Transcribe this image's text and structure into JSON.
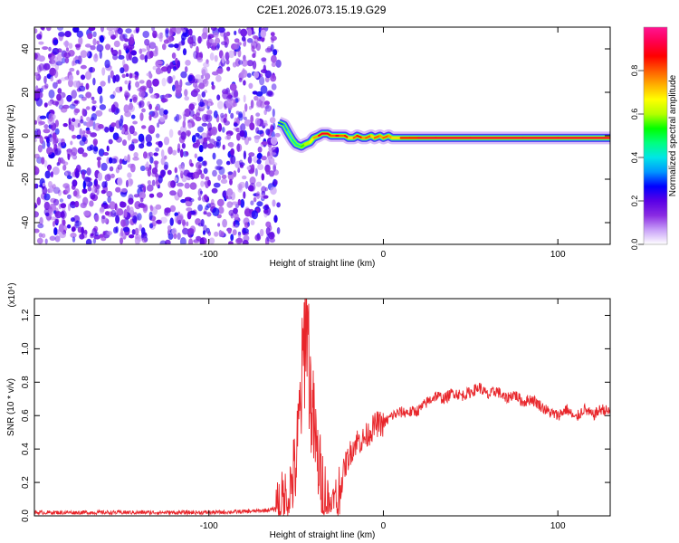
{
  "page_title": "C2E1.2026.073.15.19.G29",
  "chart_data": [
    {
      "type": "heatmap",
      "title": "C2E1.2026.073.15.19.G29",
      "xlabel": "Height of straight line (km)",
      "ylabel": "Frequency (Hz)",
      "xlim": [
        -200,
        130
      ],
      "ylim": [
        -50,
        50
      ],
      "x_ticks": [
        -100,
        0,
        100
      ],
      "y_ticks": [
        -40,
        -20,
        0,
        20,
        40
      ],
      "noise_region": {
        "x_start": -200,
        "x_end": -60
      },
      "signal_track": {
        "x": [
          -60,
          -57,
          -55,
          -52,
          -50,
          -47,
          -45,
          -42,
          -40,
          -37,
          -35,
          -32,
          -30,
          -27,
          -25,
          -22,
          -20,
          -17,
          -15,
          -12,
          -10,
          -7,
          -5,
          -2,
          0,
          3,
          5,
          10,
          15,
          20,
          30,
          50,
          80,
          100,
          130
        ],
        "y": [
          6,
          5,
          2,
          -2,
          -4,
          -5,
          -4,
          -3,
          -1,
          0,
          1,
          1,
          0,
          0,
          0,
          0,
          -1,
          -1,
          0,
          -1,
          -1,
          0,
          -1,
          0,
          -1,
          0,
          -1,
          -1,
          -1,
          -1,
          -1,
          -1,
          -1,
          -1,
          -1
        ],
        "peak_amplitude": [
          0.3,
          0.35,
          0.4,
          0.45,
          0.45,
          0.55,
          0.6,
          0.65,
          0.75,
          0.9,
          0.9,
          0.85,
          0.8,
          0.9,
          0.8,
          0.85,
          0.7,
          0.8,
          0.85,
          0.75,
          0.8,
          0.7,
          0.8,
          0.75,
          0.8,
          0.75,
          0.7,
          0.85,
          0.85,
          0.9,
          0.9,
          0.9,
          0.9,
          0.9,
          0.9
        ]
      },
      "colorbar": {
        "label": "Normalized spectral amplitude",
        "range": [
          0,
          1
        ],
        "ticks": [
          0.0,
          0.2,
          0.4,
          0.6,
          0.8
        ],
        "tick_labels": [
          "0.0",
          "0.2",
          "0.4",
          "0.6",
          "0.8"
        ],
        "colors": [
          "#ffffff",
          "#c8a0f8",
          "#8a2be2",
          "#5a00e6",
          "#0000ff",
          "#0096ff",
          "#00e6e6",
          "#00ff80",
          "#00ff00",
          "#b4ff00",
          "#ffff00",
          "#ffb000",
          "#ff5a00",
          "#ff0000",
          "#ff0050",
          "#ff1493"
        ]
      }
    },
    {
      "type": "line",
      "xlabel": "Height of straight line (km)",
      "ylabel": "SNR (10 * v/v)",
      "y_scale_label": "(x10⁴)",
      "xlim": [
        -200,
        130
      ],
      "ylim": [
        0,
        1.3
      ],
      "x_ticks": [
        -100,
        0,
        100
      ],
      "y_ticks": [
        0.0,
        0.2,
        0.4,
        0.6,
        0.8,
        1.0,
        1.2
      ],
      "y_tick_labels": [
        "0.0",
        "0.2",
        "0.4",
        "0.6",
        "0.8",
        "1.0",
        "1.2"
      ],
      "color": "#e8252a",
      "series": [
        {
          "x": [
            -200,
            -180,
            -160,
            -140,
            -120,
            -100,
            -80,
            -70,
            -62,
            -55,
            -50,
            -48,
            -46,
            -44,
            -42,
            -40,
            -38,
            -35,
            -32,
            -29,
            -26,
            -24,
            -22,
            -20,
            -18,
            -15,
            -12,
            -8,
            -4,
            0,
            5,
            10,
            15,
            20,
            25,
            30,
            35,
            40,
            45,
            50,
            55,
            60,
            65,
            70,
            75,
            80,
            85,
            90,
            95,
            100,
            105,
            110,
            115,
            120,
            125,
            130
          ],
          "y": [
            0.02,
            0.02,
            0.02,
            0.02,
            0.02,
            0.02,
            0.025,
            0.03,
            0.04,
            0.1,
            0.3,
            0.6,
            0.9,
            1.3,
            0.75,
            0.55,
            0.35,
            0.2,
            0.08,
            0.03,
            0.1,
            0.2,
            0.3,
            0.35,
            0.4,
            0.45,
            0.45,
            0.5,
            0.55,
            0.55,
            0.6,
            0.62,
            0.62,
            0.63,
            0.68,
            0.72,
            0.7,
            0.74,
            0.72,
            0.74,
            0.77,
            0.72,
            0.75,
            0.7,
            0.73,
            0.68,
            0.7,
            0.66,
            0.62,
            0.6,
            0.64,
            0.58,
            0.64,
            0.6,
            0.64,
            0.62
          ]
        }
      ]
    }
  ]
}
